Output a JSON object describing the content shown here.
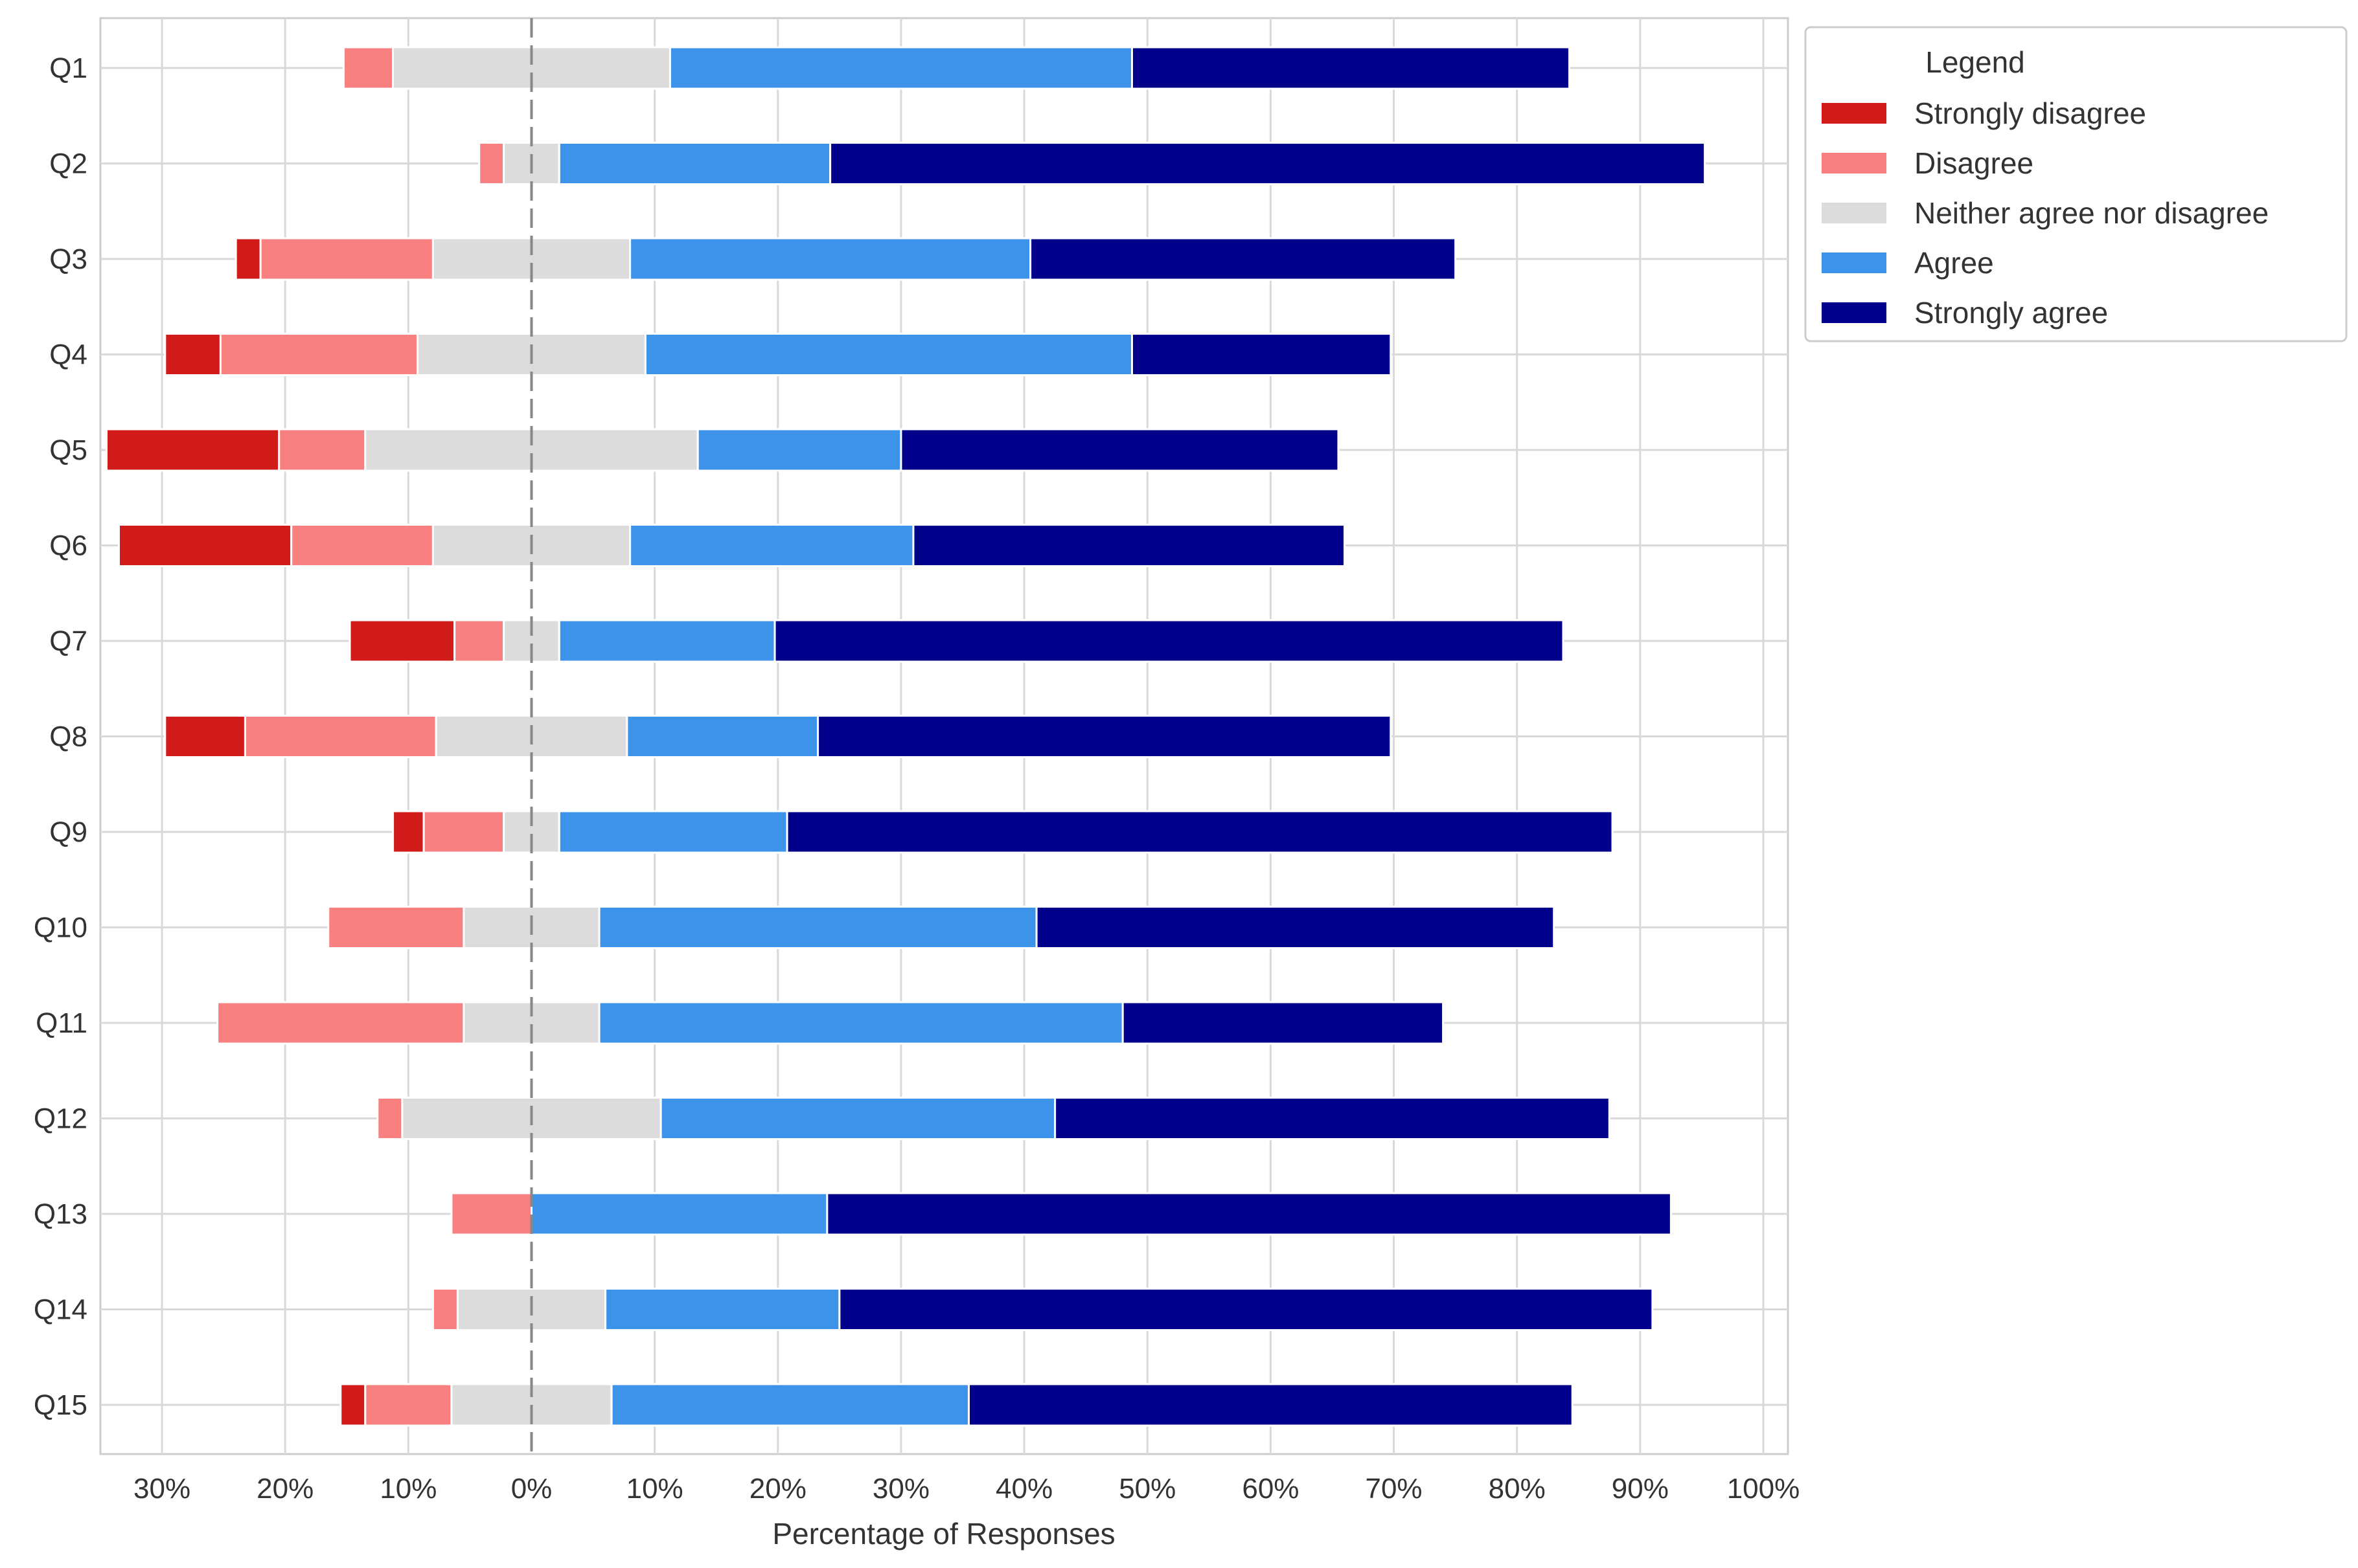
{
  "chart_data": {
    "type": "bar",
    "orientation": "horizontal",
    "stacking": "diverging",
    "categories": [
      "Q1",
      "Q2",
      "Q3",
      "Q4",
      "Q5",
      "Q6",
      "Q7",
      "Q8",
      "Q9",
      "Q10",
      "Q11",
      "Q12",
      "Q13",
      "Q14",
      "Q15"
    ],
    "series": [
      {
        "name": "Strongly disagree",
        "color": "#d11b1b",
        "values": [
          0,
          0,
          2,
          4.5,
          14,
          14,
          8.5,
          6.5,
          2.5,
          0,
          0,
          0,
          0,
          0,
          2
        ]
      },
      {
        "name": "Disagree",
        "color": "#f88080",
        "values": [
          4,
          2,
          14,
          16,
          7,
          11.5,
          4,
          15.5,
          6.5,
          11,
          20,
          2,
          6.5,
          2,
          7
        ]
      },
      {
        "name": "Neither agree nor disagree",
        "color": "#dcdcdc",
        "values": [
          22.5,
          4.5,
          16,
          18.5,
          27,
          16,
          4.5,
          15.5,
          4.5,
          11,
          11,
          21,
          0,
          12,
          13
        ]
      },
      {
        "name": "Agree",
        "color": "#3d93ea",
        "values": [
          37.5,
          22,
          32.5,
          39.5,
          16.5,
          23,
          17.5,
          15.5,
          18.5,
          35.5,
          42.5,
          32,
          24,
          19,
          29
        ]
      },
      {
        "name": "Strongly agree",
        "color": "#00008b",
        "values": [
          35.5,
          71,
          34.5,
          21,
          35.5,
          35,
          64,
          46.5,
          67,
          42,
          26,
          45,
          68.5,
          66,
          49
        ]
      }
    ],
    "title": "",
    "xlabel": "Percentage of Responses",
    "ylabel": "",
    "xlim": [
      -35,
      102
    ],
    "xticks": [
      -30,
      -20,
      -10,
      0,
      10,
      20,
      30,
      40,
      50,
      60,
      70,
      80,
      90,
      100
    ],
    "xtick_labels": [
      "30%",
      "20%",
      "10%",
      "0%",
      "10%",
      "20%",
      "30%",
      "40%",
      "50%",
      "60%",
      "70%",
      "80%",
      "90%",
      "100%"
    ],
    "grid": true,
    "zero_line": "dashed",
    "legend": {
      "title": "Legend",
      "position": "outside-top-right",
      "entries": [
        "Strongly disagree",
        "Disagree",
        "Neither agree nor disagree",
        "Agree",
        "Strongly agree"
      ]
    }
  }
}
